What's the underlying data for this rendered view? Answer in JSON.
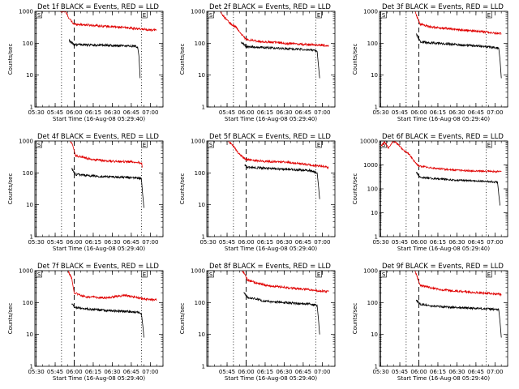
{
  "page": {
    "background": "#ffffff"
  },
  "colors": {
    "events": "#000000",
    "lld": "#e00000",
    "axes": "#000000"
  },
  "chart_data": [
    {
      "type": "line",
      "title": "Det 1f BLACK = Events, RED = LLD",
      "xlabel": "Start Time (16-Aug-08 05:29:40)",
      "ylabel": "Counts/sec",
      "y_scale": "log",
      "ylim": [
        1,
        1000
      ],
      "x_ticks": [
        "05:30",
        "05:45",
        "06:00",
        "06:15",
        "06:30",
        "06:45",
        "07:00"
      ],
      "y_ticks": [
        "1",
        "10",
        "100",
        "1000"
      ],
      "markers": {
        "S": "05:30",
        "E": "06:53"
      },
      "vlines": {
        "dotted": [
          "05:50",
          "06:53"
        ],
        "dashed": [
          "06:00"
        ]
      },
      "series": [
        {
          "name": "LLD",
          "color": "#e00000",
          "x": [
            "05:49",
            "05:53",
            "05:56",
            "05:59",
            "06:00",
            "06:30",
            "06:45",
            "06:50",
            "07:05"
          ],
          "y": [
            1000,
            1000,
            600,
            420,
            400,
            330,
            300,
            280,
            260
          ]
        },
        {
          "name": "Events",
          "color": "#000000",
          "x": [
            "05:56",
            "06:00",
            "06:30",
            "06:45",
            "06:50",
            "06:51",
            "06:52"
          ],
          "y": [
            120,
            90,
            85,
            82,
            78,
            40,
            8
          ]
        }
      ]
    },
    {
      "type": "line",
      "title": "Det 2f BLACK = Events, RED = LLD",
      "xlabel": "Start Time (16-Aug-08 05:29:40)",
      "ylabel": "Counts/sec",
      "y_scale": "log",
      "ylim": [
        1,
        1000
      ],
      "x_ticks": [
        "05:45",
        "06:00",
        "06:15",
        "06:30",
        "06:45",
        "07:00"
      ],
      "y_ticks": [
        "1",
        "10",
        "100",
        "1000"
      ],
      "markers": {
        "S": "05:30",
        "E": "06:55"
      },
      "vlines": {
        "dotted": [
          "05:50",
          "06:55"
        ],
        "dashed": [
          "06:00"
        ]
      },
      "series": [
        {
          "name": "LLD",
          "color": "#e00000",
          "x": [
            "05:40",
            "05:42",
            "05:48",
            "05:52",
            "05:56",
            "06:00",
            "06:10",
            "06:30",
            "06:50",
            "07:05"
          ],
          "y": [
            1000,
            700,
            400,
            320,
            200,
            130,
            115,
            100,
            90,
            85
          ]
        },
        {
          "name": "Events",
          "color": "#000000",
          "x": [
            "05:56",
            "06:00",
            "06:10",
            "06:30",
            "06:50",
            "06:56",
            "06:57",
            "06:58"
          ],
          "y": [
            110,
            80,
            75,
            68,
            62,
            55,
            20,
            8
          ]
        }
      ]
    },
    {
      "type": "line",
      "title": "Det 3f BLACK = Events, RED = LLD",
      "xlabel": "Start Time (16-Aug-08 05:29:40)",
      "ylabel": "Counts/sec",
      "y_scale": "log",
      "ylim": [
        1,
        1000
      ],
      "x_ticks": [
        "05:30",
        "05:45",
        "06:00",
        "06:15",
        "06:30",
        "06:45",
        "07:00"
      ],
      "y_ticks": [
        "1",
        "10",
        "100",
        "1000"
      ],
      "markers": {
        "S": "05:30",
        "E": "06:53"
      },
      "vlines": {
        "dotted": [
          "05:50",
          "06:53"
        ],
        "dashed": [
          "06:00"
        ]
      },
      "series": [
        {
          "name": "LLD",
          "color": "#e00000",
          "x": [
            "05:57",
            "05:59",
            "06:01",
            "06:10",
            "06:30",
            "06:50",
            "07:05"
          ],
          "y": [
            1000,
            600,
            400,
            320,
            270,
            230,
            200
          ]
        },
        {
          "name": "Events",
          "color": "#000000",
          "x": [
            "05:58",
            "06:01",
            "06:15",
            "06:30",
            "06:50",
            "07:03",
            "07:04",
            "07:05"
          ],
          "y": [
            200,
            110,
            100,
            90,
            80,
            70,
            30,
            8
          ]
        }
      ]
    },
    {
      "type": "line",
      "title": "Det 4f BLACK = Events, RED = LLD",
      "xlabel": "Start Time (16-Aug-08 05:29:40)",
      "ylabel": "Counts/sec",
      "y_scale": "log",
      "ylim": [
        1,
        1000
      ],
      "x_ticks": [
        "05:30",
        "05:45",
        "06:00",
        "06:15",
        "06:30",
        "06:45",
        "07:00"
      ],
      "y_ticks": [
        "1",
        "10",
        "100",
        "1000"
      ],
      "markers": {
        "S": "05:30",
        "E": "06:53"
      },
      "vlines": {
        "dotted": [
          "05:50",
          "06:53"
        ],
        "dashed": [
          "06:00"
        ]
      },
      "series": [
        {
          "name": "LLD",
          "color": "#e00000",
          "x": [
            "05:57",
            "05:59",
            "06:01",
            "06:15",
            "06:30",
            "06:50",
            "06:53",
            "06:54"
          ],
          "y": [
            1000,
            700,
            350,
            260,
            230,
            220,
            200,
            150
          ]
        },
        {
          "name": "Events",
          "color": "#000000",
          "x": [
            "05:58",
            "06:01",
            "06:15",
            "06:30",
            "06:50",
            "06:53",
            "06:54",
            "06:55"
          ],
          "y": [
            140,
            90,
            80,
            75,
            70,
            65,
            20,
            8
          ]
        }
      ]
    },
    {
      "type": "line",
      "title": "Det 5f BLACK = Events, RED = LLD",
      "xlabel": "Start Time (16-Aug-08 05:29:40)",
      "ylabel": "Counts/sec",
      "y_scale": "log",
      "ylim": [
        1,
        1000
      ],
      "x_ticks": [
        "05:30",
        "05:45",
        "06:00",
        "06:15",
        "06:30",
        "06:45",
        "07:00"
      ],
      "y_ticks": [
        "1",
        "10",
        "100",
        "1000"
      ],
      "markers": {
        "S": "05:30",
        "E": "06:55"
      },
      "vlines": {
        "dotted": [
          "05:50",
          "06:55"
        ],
        "dashed": [
          "06:00"
        ]
      },
      "series": [
        {
          "name": "LLD",
          "color": "#e00000",
          "x": [
            "05:46",
            "05:50",
            "05:54",
            "05:58",
            "06:00",
            "06:15",
            "06:30",
            "06:50",
            "07:05"
          ],
          "y": [
            1000,
            700,
            420,
            300,
            260,
            230,
            220,
            180,
            150
          ]
        },
        {
          "name": "Events",
          "color": "#000000",
          "x": [
            "05:59",
            "06:01",
            "06:15",
            "06:30",
            "06:50",
            "06:56",
            "06:57",
            "06:58"
          ],
          "y": [
            180,
            150,
            140,
            130,
            120,
            100,
            40,
            15
          ]
        }
      ]
    },
    {
      "type": "line",
      "title": "Det 6f BLACK = Events, RED = LLD",
      "xlabel": "Start Time (16-Aug-08 05:29:40)",
      "ylabel": "Counts/sec",
      "y_scale": "log",
      "ylim": [
        1,
        10000
      ],
      "x_ticks": [
        "05:30",
        "05:45",
        "06:00",
        "06:15",
        "06:30",
        "06:45",
        "07:00"
      ],
      "y_ticks": [
        "1",
        "10",
        "100",
        "1000",
        "10000"
      ],
      "markers": {
        "S": "05:30",
        "E": "06:53"
      },
      "vlines": {
        "dotted": [
          "05:50",
          "06:53"
        ],
        "dashed": [
          "06:00"
        ]
      },
      "series": [
        {
          "name": "LLD",
          "color": "#e00000",
          "x": [
            "05:30",
            "05:33",
            "05:36",
            "05:40",
            "05:44",
            "05:48",
            "05:52",
            "05:56",
            "06:00",
            "06:15",
            "06:30",
            "06:50",
            "07:05"
          ],
          "y": [
            6000,
            9000,
            5000,
            10000,
            7000,
            4000,
            3000,
            1500,
            900,
            700,
            600,
            550,
            520
          ]
        },
        {
          "name": "Events",
          "color": "#000000",
          "x": [
            "05:58",
            "06:01",
            "06:15",
            "06:30",
            "06:50",
            "07:02",
            "07:03",
            "07:04"
          ],
          "y": [
            500,
            300,
            260,
            230,
            210,
            190,
            60,
            20
          ]
        }
      ]
    },
    {
      "type": "line",
      "title": "Det 7f BLACK = Events, RED = LLD",
      "xlabel": "Start Time (16-Aug-08 05:29:40)",
      "ylabel": "Counts/sec",
      "y_scale": "log",
      "ylim": [
        1,
        1000
      ],
      "x_ticks": [
        "05:30",
        "05:45",
        "06:00",
        "06:15",
        "06:30",
        "06:45",
        "07:00"
      ],
      "y_ticks": [
        "1",
        "10",
        "100",
        "1000"
      ],
      "markers": {
        "S": "05:30",
        "E": "06:53"
      },
      "vlines": {
        "dotted": [
          "05:50",
          "06:53"
        ],
        "dashed": [
          "06:00"
        ]
      },
      "series": [
        {
          "name": "LLD",
          "color": "#e00000",
          "x": [
            "05:55",
            "05:58",
            "06:00",
            "06:10",
            "06:25",
            "06:40",
            "06:55",
            "07:05"
          ],
          "y": [
            1000,
            600,
            200,
            150,
            140,
            170,
            130,
            120
          ]
        },
        {
          "name": "Events",
          "color": "#000000",
          "x": [
            "05:58",
            "06:01",
            "06:15",
            "06:30",
            "06:50",
            "06:53",
            "06:54",
            "06:55"
          ],
          "y": [
            90,
            70,
            60,
            55,
            50,
            45,
            20,
            8
          ]
        }
      ]
    },
    {
      "type": "line",
      "title": "Det 8f BLACK = Events, RED = LLD",
      "xlabel": "Start Time (16-Aug-08 05:29:40)",
      "ylabel": "Counts/sec",
      "y_scale": "log",
      "ylim": [
        1,
        1000
      ],
      "x_ticks": [
        "05:45",
        "06:00",
        "06:15",
        "06:30",
        "06:45",
        "07:00"
      ],
      "y_ticks": [
        "1",
        "10",
        "100",
        "1000"
      ],
      "markers": {
        "S": "05:30",
        "E": "06:55"
      },
      "vlines": {
        "dotted": [
          "05:50",
          "06:55"
        ],
        "dashed": [
          "06:00"
        ]
      },
      "series": [
        {
          "name": "LLD",
          "color": "#e00000",
          "x": [
            "05:57",
            "05:59",
            "06:01",
            "06:15",
            "06:30",
            "06:50",
            "07:05"
          ],
          "y": [
            1000,
            800,
            500,
            350,
            300,
            250,
            220
          ]
        },
        {
          "name": "Events",
          "color": "#000000",
          "x": [
            "05:58",
            "06:01",
            "06:15",
            "06:30",
            "06:50",
            "06:56",
            "06:57",
            "06:58"
          ],
          "y": [
            200,
            150,
            110,
            100,
            90,
            80,
            30,
            10
          ]
        }
      ]
    },
    {
      "type": "line",
      "title": "Det 9f BLACK = Events, RED = LLD",
      "xlabel": "Start Time (16-Aug-08 05:29:40)",
      "ylabel": "Counts/sec",
      "y_scale": "log",
      "ylim": [
        1,
        1000
      ],
      "x_ticks": [
        "05:30",
        "05:45",
        "06:00",
        "06:15",
        "06:30",
        "06:45",
        "07:00"
      ],
      "y_ticks": [
        "1",
        "10",
        "100",
        "1000"
      ],
      "markers": {
        "S": "05:30",
        "E": "06:53"
      },
      "vlines": {
        "dotted": [
          "05:50",
          "06:53"
        ],
        "dashed": [
          "06:00"
        ]
      },
      "series": [
        {
          "name": "LLD",
          "color": "#e00000",
          "x": [
            "05:57",
            "05:59",
            "06:01",
            "06:15",
            "06:30",
            "06:50",
            "07:05"
          ],
          "y": [
            1000,
            600,
            350,
            260,
            230,
            200,
            180
          ]
        },
        {
          "name": "Events",
          "color": "#000000",
          "x": [
            "05:58",
            "06:01",
            "06:15",
            "06:30",
            "06:50",
            "07:03",
            "07:04",
            "07:05"
          ],
          "y": [
            120,
            90,
            75,
            70,
            65,
            60,
            25,
            8
          ]
        }
      ]
    }
  ]
}
